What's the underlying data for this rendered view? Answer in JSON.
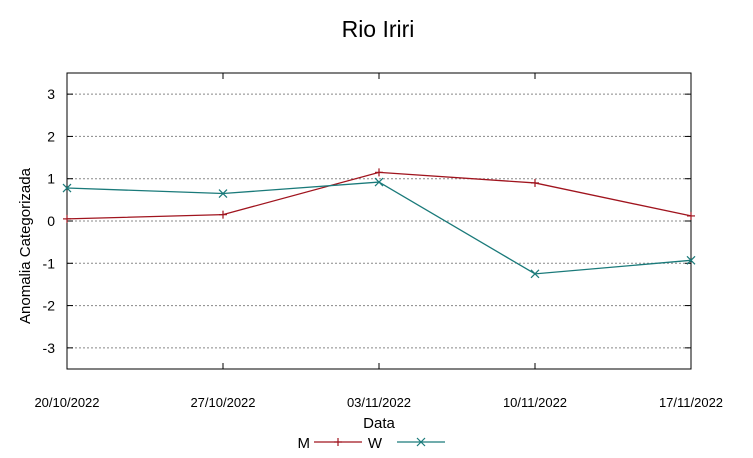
{
  "chart_data": {
    "type": "line",
    "title": "Rio Iriri",
    "xlabel": "Data",
    "ylabel": "Anomalia Categorizada",
    "x": [
      "20/10/2022",
      "27/10/2022",
      "03/11/2022",
      "10/11/2022",
      "17/11/2022"
    ],
    "ylim": [
      -3.5,
      3.5
    ],
    "yticks": [
      -3,
      -2,
      -1,
      0,
      1,
      2,
      3
    ],
    "grid": "horizontal dotted",
    "legend_position": "bottom-center",
    "series": [
      {
        "name": "M",
        "color": "#a0141e",
        "marker": "+",
        "values": [
          0.05,
          0.15,
          1.15,
          0.9,
          0.12
        ]
      },
      {
        "name": "W",
        "color": "#1a7a7a",
        "marker": "x",
        "values": [
          0.78,
          0.65,
          0.92,
          -1.25,
          -0.93
        ]
      }
    ]
  }
}
